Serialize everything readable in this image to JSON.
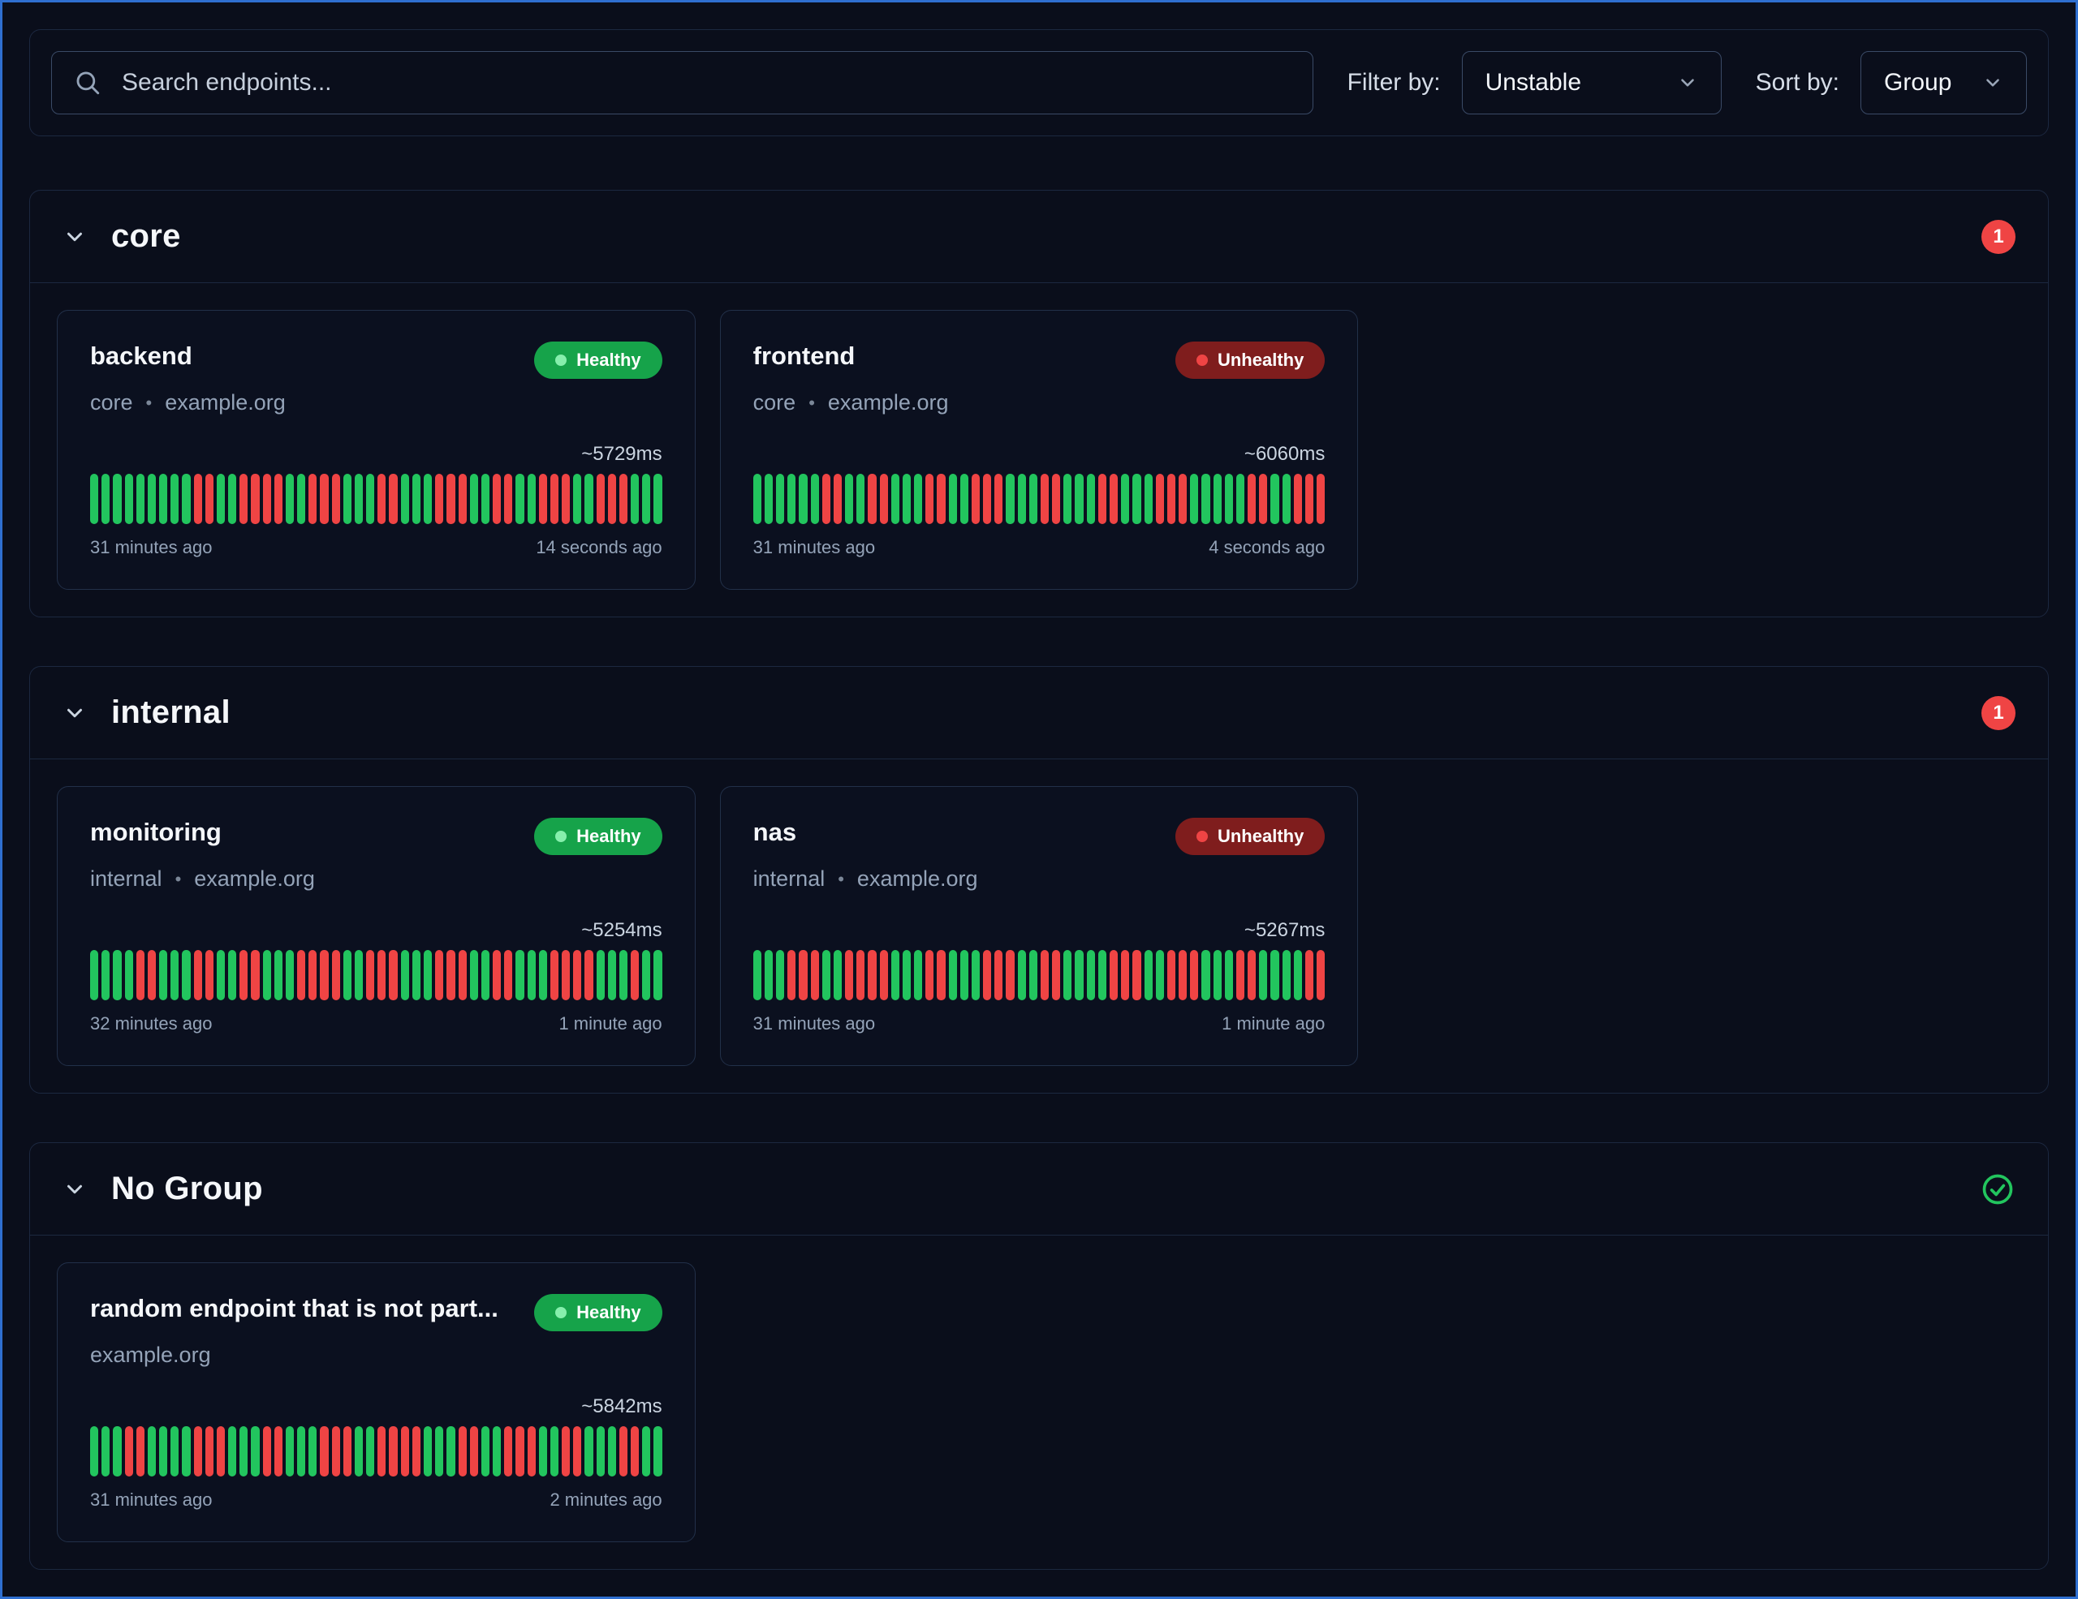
{
  "toolbar": {
    "search_placeholder": "Search endpoints...",
    "filter_label": "Filter by:",
    "filter_value": "Unstable",
    "sort_label": "Sort by:",
    "sort_value": "Group"
  },
  "subtitle_separator": "•",
  "colors": {
    "page_background": "#0a0e1b",
    "page_border": "#2f6fd0",
    "bar_green": "#22c55e",
    "bar_red": "#ef4444",
    "healthy_pill": "#16a34a",
    "unhealthy_pill": "#7f1d1d",
    "unhealthy_count_badge": "#ef4444",
    "healthy_check": "#22c55e"
  },
  "icons": {
    "search": "magnifier",
    "chevron_down": "chevron-down",
    "group_healthy": "check-circle",
    "status_dot": "dot"
  },
  "groups": [
    {
      "name": "core",
      "indicator": {
        "type": "count",
        "value": "1"
      },
      "endpoints": [
        {
          "name": "backend",
          "status": "Healthy",
          "group_label": "core",
          "host": "example.org",
          "response_time": "~5729ms",
          "first_check": "31 minutes ago",
          "last_check": "14 seconds ago",
          "bars": "GGGGGGGGGRRGGRRRRGGRRRGGGRRGGGRRRGGRRGGRRRGGRRRGGG"
        },
        {
          "name": "frontend",
          "status": "Unhealthy",
          "group_label": "core",
          "host": "example.org",
          "response_time": "~6060ms",
          "first_check": "31 minutes ago",
          "last_check": "4 seconds ago",
          "bars": "GGGGGGRRGGRRGGGRRGGRRRGGGRRGGGRRGGGRRRGGGGGRRGGRRR"
        }
      ]
    },
    {
      "name": "internal",
      "indicator": {
        "type": "count",
        "value": "1"
      },
      "endpoints": [
        {
          "name": "monitoring",
          "status": "Healthy",
          "group_label": "internal",
          "host": "example.org",
          "response_time": "~5254ms",
          "first_check": "32 minutes ago",
          "last_check": "1 minute ago",
          "bars": "GGGGRRGGGRRGGRRGGGRRRRGGRRRGGGRRRGGRRGGGRRRRGGGRGG"
        },
        {
          "name": "nas",
          "status": "Unhealthy",
          "group_label": "internal",
          "host": "example.org",
          "response_time": "~5267ms",
          "first_check": "31 minutes ago",
          "last_check": "1 minute ago",
          "bars": "GGGRRRGGRRRRGGGRRGGGRRRGGRRGGGGRRRGGRRRGGGRRGGGGRR"
        }
      ]
    },
    {
      "name": "No Group",
      "indicator": {
        "type": "check"
      },
      "endpoints": [
        {
          "name": "random endpoint that is not part...",
          "status": "Healthy",
          "group_label": "",
          "host": "example.org",
          "response_time": "~5842ms",
          "first_check": "31 minutes ago",
          "last_check": "2 minutes ago",
          "bars": "GGGRRGGGGRRRGGGRRGGGRRRGGRRRRGGGRRGGRRRGGRRGGGRRGG"
        }
      ]
    }
  ]
}
